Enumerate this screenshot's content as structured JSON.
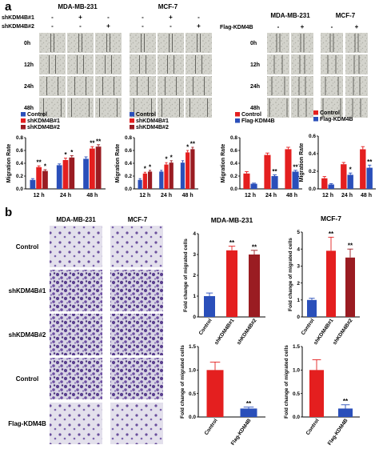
{
  "panel_labels": {
    "a": "a",
    "b": "b"
  },
  "scratch_left": {
    "cell_lines": [
      "MDA-MB-231",
      "MCF-7"
    ],
    "row_names": [
      "shKDM4B#1",
      "shKDM4B#2"
    ],
    "sign_rows": [
      [
        "-",
        "+",
        "-"
      ],
      [
        "-",
        "-",
        "+"
      ]
    ],
    "times": [
      "0h",
      "12h",
      "24h",
      "48h"
    ]
  },
  "scratch_right": {
    "cell_lines": [
      "MDA-MB-231",
      "MCF-7"
    ],
    "row_name": "Flag-KDM4B",
    "signs": [
      "-",
      "+"
    ],
    "times": [
      "0h",
      "12h",
      "24h",
      "48h"
    ]
  },
  "transwell": {
    "cell_lines": [
      "MDA-MB-231",
      "MCF-7"
    ],
    "conditions": [
      "Control",
      "shKDM4B#1",
      "shKDM4B#2",
      "Control",
      "Flag-KDM4B"
    ]
  },
  "colors": {
    "blue": "#2a4fba",
    "red": "#e41f1f",
    "dark_red": "#9a1c22",
    "image_gray": "#c9c9c3",
    "stain": "#5a3f8f"
  },
  "chart_data": [
    {
      "type": "bar",
      "ylabel": "Migration Rate",
      "categories": [
        "12 h",
        "24 h",
        "48 h"
      ],
      "ylim": [
        0,
        0.8
      ],
      "yticks": [
        "0.0",
        "0.2",
        "0.4",
        "0.6",
        "0.8"
      ],
      "legend": "top-left",
      "series": [
        {
          "name": "Control",
          "color": "#2a4fba",
          "values": [
            0.14,
            0.37,
            0.47
          ],
          "errors": [
            0.02,
            0.02,
            0.03
          ]
        },
        {
          "name": "shKDM4B#1",
          "color": "#e41f1f",
          "values": [
            0.34,
            0.45,
            0.63
          ],
          "errors": [
            0.02,
            0.03,
            0.03
          ]
        },
        {
          "name": "shKDM4B#2",
          "color": "#9a1c22",
          "values": [
            0.28,
            0.49,
            0.66
          ],
          "errors": [
            0.02,
            0.03,
            0.03
          ]
        }
      ],
      "annotations": [
        [
          "",
          "**",
          "*"
        ],
        [
          "",
          "*",
          "*"
        ],
        [
          "",
          "**",
          "**"
        ]
      ]
    },
    {
      "type": "bar",
      "ylabel": "Migration Rate",
      "categories": [
        "12 h",
        "24 h",
        "48 h"
      ],
      "ylim": [
        0,
        0.8
      ],
      "yticks": [
        "0.0",
        "0.2",
        "0.4",
        "0.6",
        "0.8"
      ],
      "legend": "top-left",
      "series": [
        {
          "name": "Control",
          "color": "#2a4fba",
          "values": [
            0.14,
            0.27,
            0.41
          ],
          "errors": [
            0.02,
            0.02,
            0.03
          ]
        },
        {
          "name": "shKDM4B#1",
          "color": "#e41f1f",
          "values": [
            0.24,
            0.38,
            0.57
          ],
          "errors": [
            0.02,
            0.03,
            0.03
          ]
        },
        {
          "name": "shKDM4B#2",
          "color": "#9a1c22",
          "values": [
            0.27,
            0.41,
            0.62
          ],
          "errors": [
            0.02,
            0.03,
            0.03
          ]
        }
      ],
      "annotations": [
        [
          "",
          "*",
          "*"
        ],
        [
          "",
          "*",
          "*"
        ],
        [
          "",
          "*",
          "**"
        ]
      ]
    },
    {
      "type": "bar",
      "ylabel": "Migration Rate",
      "categories": [
        "12 h",
        "24 h",
        "48 h"
      ],
      "ylim": [
        0,
        0.8
      ],
      "yticks": [
        "0.0",
        "0.2",
        "0.4",
        "0.6",
        "0.8"
      ],
      "legend": "top-left",
      "series": [
        {
          "name": "Control",
          "color": "#e41f1f",
          "values": [
            0.24,
            0.53,
            0.62
          ],
          "errors": [
            0.03,
            0.03,
            0.03
          ]
        },
        {
          "name": "Flag-KDM4B",
          "color": "#2a4fba",
          "values": [
            0.08,
            0.2,
            0.27
          ],
          "errors": [
            0.01,
            0.02,
            0.02
          ]
        }
      ],
      "annotations": [
        [
          "",
          ""
        ],
        [
          "",
          "**"
        ],
        [
          "",
          "**"
        ]
      ]
    },
    {
      "type": "bar",
      "ylabel": "Migration Rate",
      "categories": [
        "12 h",
        "24 h",
        "48 h"
      ],
      "ylim": [
        0,
        0.6
      ],
      "yticks": [
        "0.0",
        "0.2",
        "0.4",
        "0.6"
      ],
      "legend": "top-left",
      "series": [
        {
          "name": "Control",
          "color": "#e41f1f",
          "values": [
            0.12,
            0.28,
            0.45
          ],
          "errors": [
            0.02,
            0.02,
            0.03
          ]
        },
        {
          "name": "Flag-KDM4B",
          "color": "#2a4fba",
          "values": [
            0.05,
            0.16,
            0.24
          ],
          "errors": [
            0.01,
            0.02,
            0.03
          ]
        }
      ],
      "annotations": [
        [
          "",
          ""
        ],
        [
          "",
          "*"
        ],
        [
          "",
          "**"
        ]
      ]
    },
    {
      "type": "bar",
      "title": "MDA-MB-231",
      "ylabel": "Fold change of migrated cells",
      "categories": [
        "Control",
        "shKDM4B#1",
        "shKDM4B#2"
      ],
      "ylim": [
        0,
        4
      ],
      "yticks": [
        "0",
        "1",
        "2",
        "3",
        "4"
      ],
      "values": [
        1.0,
        3.2,
        3.0
      ],
      "errors": [
        0.15,
        0.2,
        0.2
      ],
      "colors": [
        "#2a4fba",
        "#e41f1f",
        "#9a1c22"
      ],
      "annotations": [
        "",
        "**",
        "**"
      ]
    },
    {
      "type": "bar",
      "title": "MCF-7",
      "ylabel": "Fold change of migrated cells",
      "categories": [
        "Control",
        "shKDM4B#1",
        "shKDM4B#2"
      ],
      "ylim": [
        0,
        5
      ],
      "yticks": [
        "0",
        "1",
        "2",
        "3",
        "4",
        "5"
      ],
      "values": [
        1.0,
        3.9,
        3.5
      ],
      "errors": [
        0.1,
        0.8,
        0.5
      ],
      "colors": [
        "#2a4fba",
        "#e41f1f",
        "#9a1c22"
      ],
      "annotations": [
        "",
        "**",
        "**"
      ]
    },
    {
      "type": "bar",
      "ylabel": "Fold change of migrated cells",
      "categories": [
        "Control",
        "Flag-KDM4B"
      ],
      "ylim": [
        0,
        1.5
      ],
      "yticks": [
        "0.0",
        "0.5",
        "1.0",
        "1.5"
      ],
      "values": [
        1.0,
        0.18
      ],
      "errors": [
        0.17,
        0.03
      ],
      "colors": [
        "#e41f1f",
        "#2a4fba"
      ],
      "annotations": [
        "",
        "**"
      ]
    },
    {
      "type": "bar",
      "ylabel": "Fold change of migrated cells",
      "categories": [
        "Control",
        "Flag-KDM4B"
      ],
      "ylim": [
        0,
        1.5
      ],
      "yticks": [
        "0.0",
        "0.5",
        "1.0",
        "1.5"
      ],
      "values": [
        1.0,
        0.18
      ],
      "errors": [
        0.22,
        0.08
      ],
      "colors": [
        "#e41f1f",
        "#2a4fba"
      ],
      "annotations": [
        "",
        "**"
      ]
    }
  ]
}
